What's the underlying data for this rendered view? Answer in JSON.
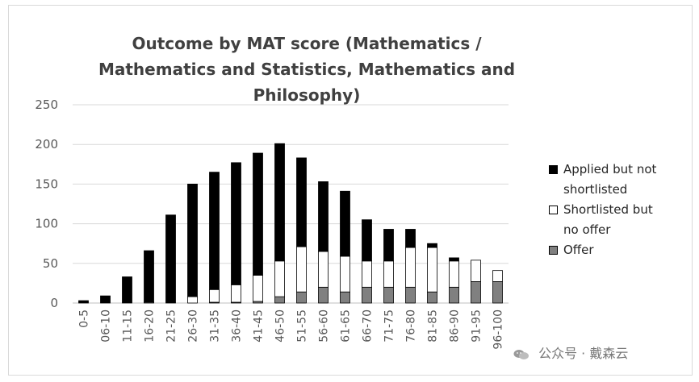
{
  "chart_data": {
    "type": "bar",
    "stacked": true,
    "title": "Outcome by MAT score (Mathematics / Mathematics and Statistics, Mathematics and Philosophy)",
    "title_lines": [
      "Outcome by MAT score (Mathematics /",
      "Mathematics and Statistics, Mathematics and Philosophy)"
    ],
    "xlabel": "",
    "ylabel": "",
    "ylim": [
      0,
      250
    ],
    "yticks": [
      0,
      50,
      100,
      150,
      200,
      250
    ],
    "grid": true,
    "legend_position": "right",
    "categories": [
      "0-5",
      "06-10",
      "11-15",
      "16-20",
      "21-25",
      "26-30",
      "31-35",
      "36-40",
      "41-45",
      "46-50",
      "51-55",
      "56-60",
      "61-65",
      "66-70",
      "71-75",
      "76-80",
      "81-85",
      "86-90",
      "91-95",
      "96-100"
    ],
    "series": [
      {
        "name": "Offer",
        "color": "#808080",
        "values": [
          0,
          0,
          0,
          0,
          0,
          0,
          1,
          1,
          2,
          8,
          14,
          20,
          14,
          20,
          20,
          20,
          14,
          20,
          27,
          27
        ]
      },
      {
        "name": "Shortlisted but no offer",
        "color": "#ffffff",
        "values": [
          0,
          0,
          0,
          1,
          0,
          8,
          16,
          22,
          33,
          45,
          57,
          45,
          45,
          33,
          33,
          50,
          56,
          33,
          27,
          14
        ]
      },
      {
        "name": "Applied but not shortlisted",
        "color": "#000000",
        "values": [
          3,
          9,
          33,
          65,
          111,
          142,
          148,
          154,
          154,
          148,
          112,
          88,
          82,
          52,
          40,
          23,
          5,
          4,
          0,
          0
        ]
      }
    ],
    "legend_order": [
      "Applied but not shortlisted",
      "Shortlisted but no offer",
      "Offer"
    ]
  },
  "legend": {
    "items": [
      {
        "label_line1": "Applied but not",
        "label_line2": "shortlisted",
        "color": "#000000"
      },
      {
        "label_line1": "Shortlisted but",
        "label_line2": "no offer",
        "color": "#ffffff"
      },
      {
        "label_line1": "Offer",
        "label_line2": "",
        "color": "#808080"
      }
    ]
  },
  "watermark": {
    "text": "公众号 · 戴森云",
    "icon": "wechat-icon"
  }
}
